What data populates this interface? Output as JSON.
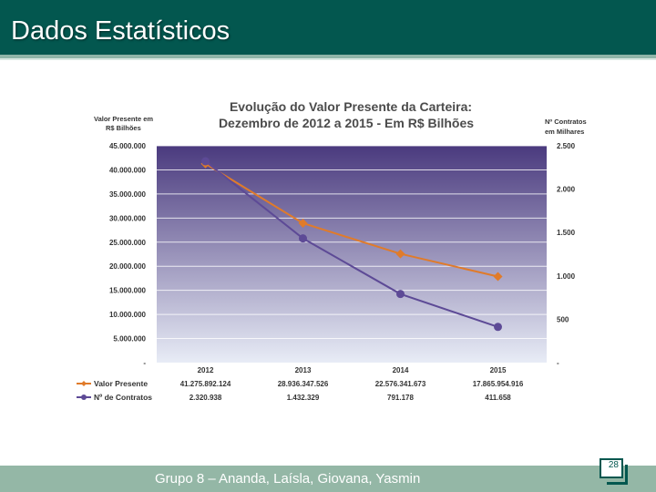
{
  "slide": {
    "title": "Dados Estatísticos",
    "footer": "Grupo 8 – Ananda, Laísla, Giovana, Yasmin",
    "page_number": "28"
  },
  "chart_data": {
    "type": "line",
    "title_line1": "Evolução do Valor Presente da Carteira:",
    "title_line2": "Dezembro de 2012 a 2015 - Em R$ Bilhões",
    "ylabel_left_line1": "Valor Presente em",
    "ylabel_left_line2": "R$ Bilhões",
    "ylabel_right_line1": "Nº Contratos",
    "ylabel_right_line2": "em Milhares",
    "categories": [
      "2012",
      "2013",
      "2014",
      "2015"
    ],
    "left_axis": {
      "ylim": [
        0,
        45000000
      ],
      "ticks": [
        {
          "value": 45000000,
          "label": "45.000.000"
        },
        {
          "value": 40000000,
          "label": "40.000.000"
        },
        {
          "value": 35000000,
          "label": "35.000.000"
        },
        {
          "value": 30000000,
          "label": "30.000.000"
        },
        {
          "value": 25000000,
          "label": "25.000.000"
        },
        {
          "value": 20000000,
          "label": "20.000.000"
        },
        {
          "value": 15000000,
          "label": "15.000.000"
        },
        {
          "value": 10000000,
          "label": "10.000.000"
        },
        {
          "value": 5000000,
          "label": "5.000.000"
        },
        {
          "value": 0,
          "label": "-"
        }
      ]
    },
    "right_axis": {
      "ylim": [
        0,
        2500
      ],
      "ticks": [
        {
          "value": 2500,
          "label": "2.500"
        },
        {
          "value": 2000,
          "label": "2.000"
        },
        {
          "value": 1500,
          "label": "1.500"
        },
        {
          "value": 1000,
          "label": "1.000"
        },
        {
          "value": 500,
          "label": "500"
        },
        {
          "value": 0,
          "label": "-"
        }
      ]
    },
    "series": [
      {
        "name": "Valor Presente",
        "axis": "left",
        "color": "#e07b2a",
        "marker": "diamond",
        "values": [
          41275892124,
          28936347526,
          22576341673,
          17865954916
        ],
        "plot_values": [
          41275892,
          28936347,
          22576341,
          17865954
        ],
        "labels": [
          "41.275.892.124",
          "28.936.347.526",
          "22.576.341.673",
          "17.865.954.916"
        ]
      },
      {
        "name": "Nº de Contratos",
        "axis": "right",
        "color": "#5d4a96",
        "marker": "circle",
        "values": [
          2320.938,
          1432.329,
          791.178,
          411.658
        ],
        "labels": [
          "2.320.938",
          "1.432.329",
          "791.178",
          "411.658"
        ]
      }
    ],
    "colors": {
      "plot_top": "#4a3a7e",
      "plot_bottom": "#e8ecf6",
      "grid": "#ffffff"
    }
  }
}
